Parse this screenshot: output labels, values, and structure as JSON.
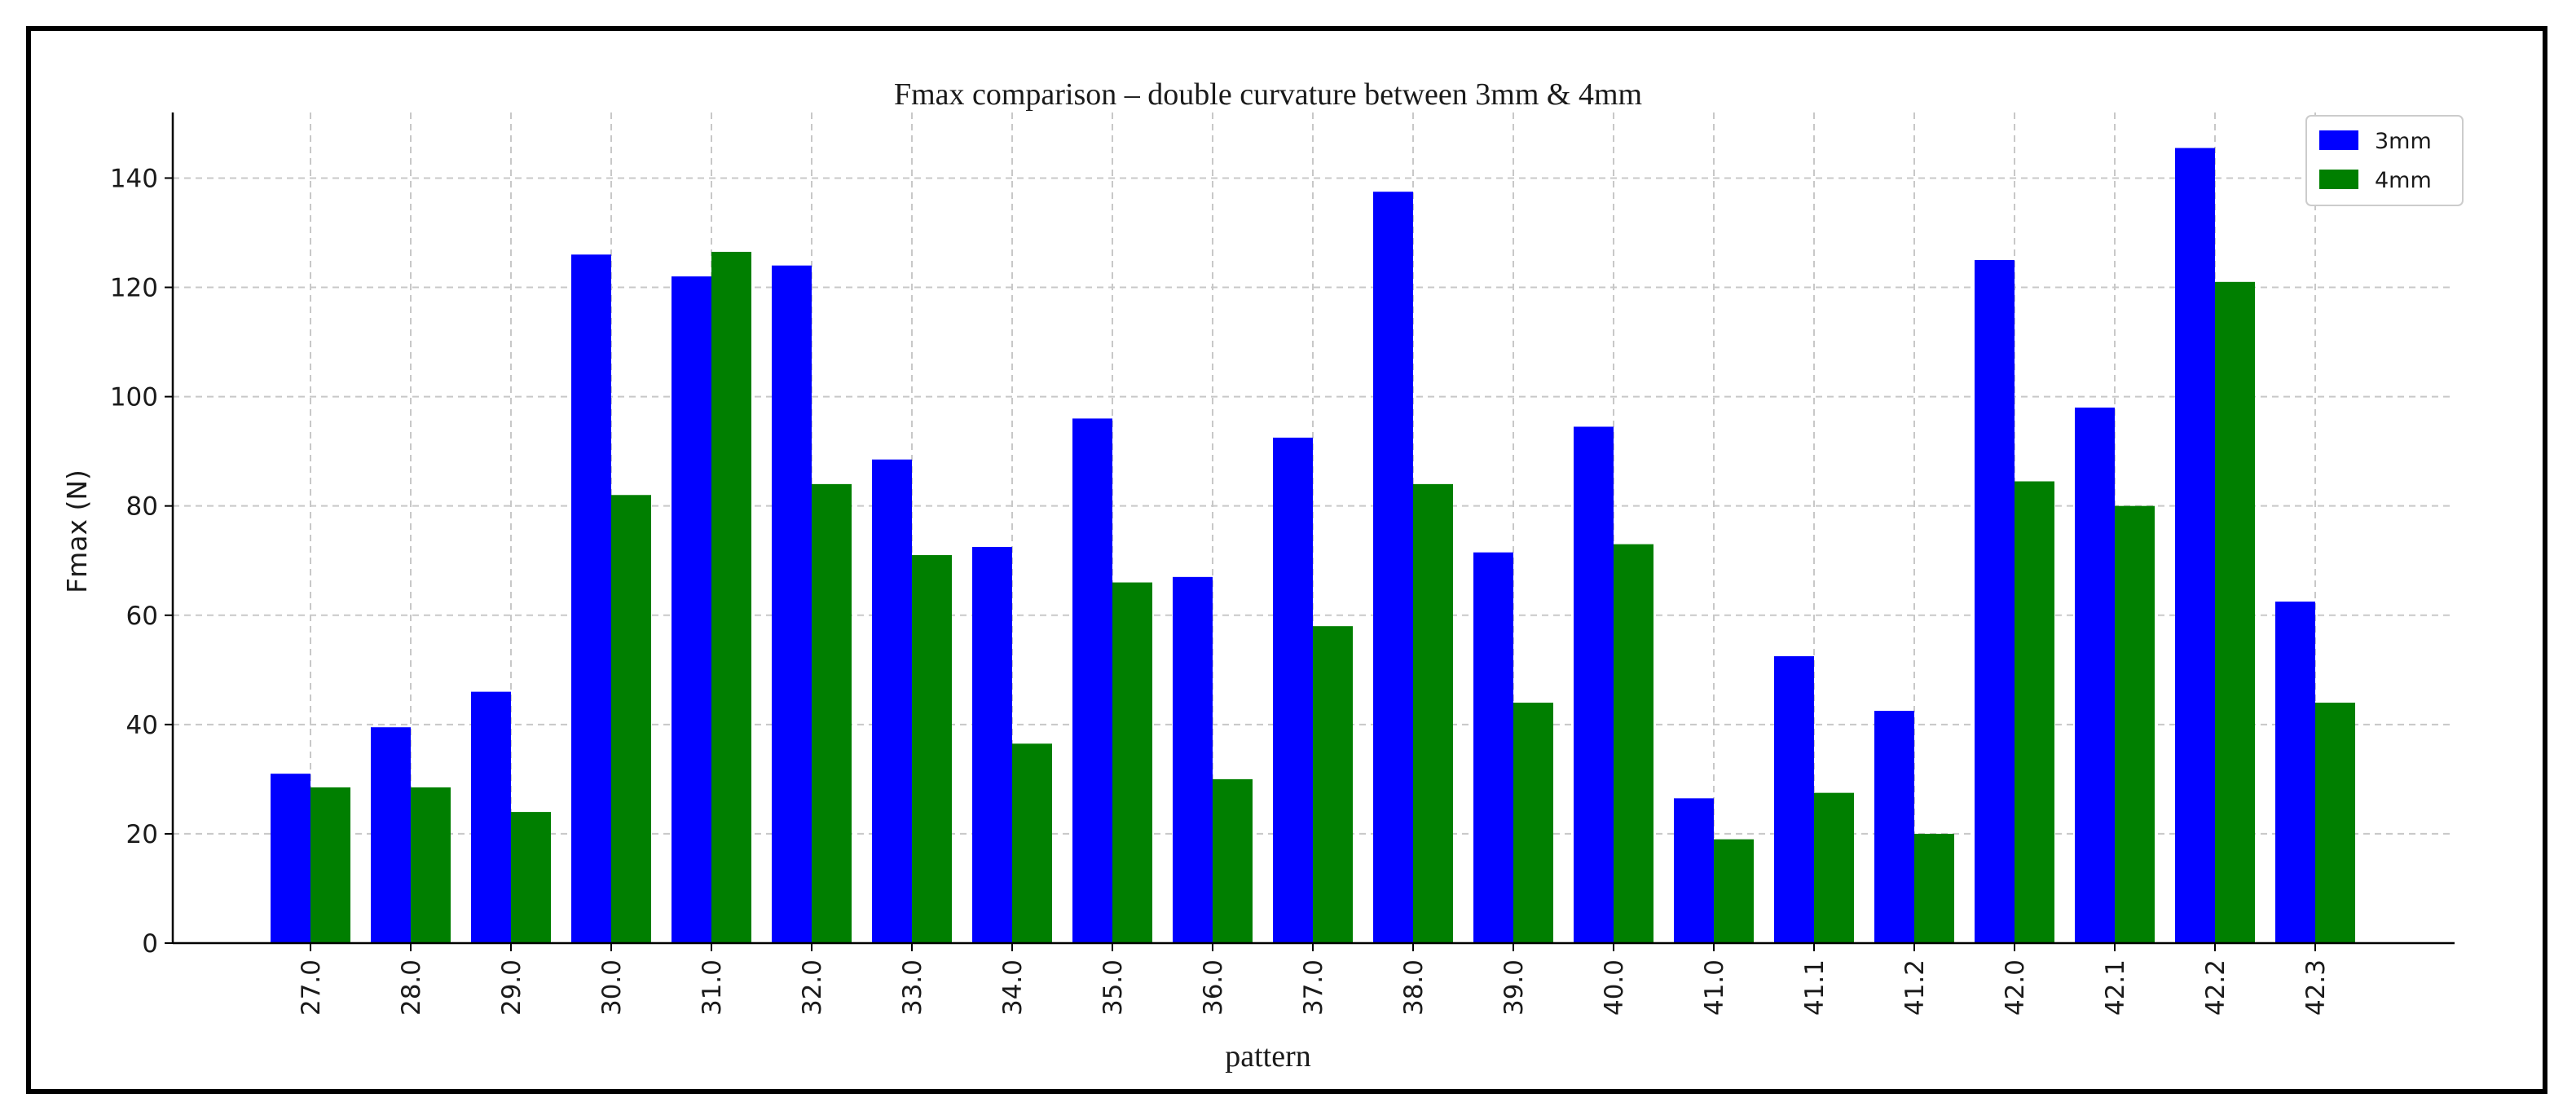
{
  "chart_data": {
    "type": "bar",
    "title": "Fmax comparison – double curvature between 3mm & 4mm",
    "xlabel": "pattern",
    "ylabel": "Fmax (N)",
    "ylim": [
      0,
      152
    ],
    "yticks": [
      0,
      20,
      40,
      60,
      80,
      100,
      120,
      140
    ],
    "grid": true,
    "legend_position": "top-right",
    "categories": [
      "27.0",
      "28.0",
      "29.0",
      "30.0",
      "31.0",
      "32.0",
      "33.0",
      "34.0",
      "35.0",
      "36.0",
      "37.0",
      "38.0",
      "39.0",
      "40.0",
      "41.0",
      "41.1",
      "41.2",
      "42.0",
      "42.1",
      "42.2",
      "42.3"
    ],
    "series": [
      {
        "name": "3mm",
        "color": "#0000ff",
        "values": [
          31,
          39.5,
          46,
          126,
          122,
          124,
          88.5,
          72.5,
          96,
          67,
          92.5,
          137.5,
          71.5,
          94.5,
          26.5,
          52.5,
          42.5,
          125,
          98,
          145.5,
          62.5
        ]
      },
      {
        "name": "4mm",
        "color": "#007f00",
        "values": [
          28.5,
          28.5,
          24,
          82,
          126.5,
          84,
          71,
          36.5,
          66,
          30,
          58,
          84,
          44,
          73,
          19,
          27.5,
          20,
          84.5,
          80,
          121,
          44
        ]
      }
    ]
  }
}
